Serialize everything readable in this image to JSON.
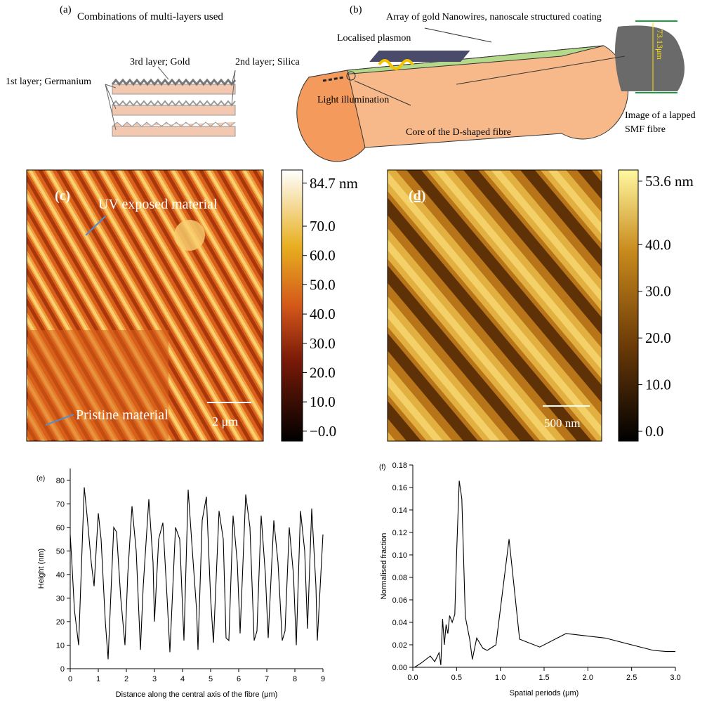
{
  "panel_a": {
    "label": "(a)",
    "title": "Combinations of multi-layers used",
    "layer3": "3rd layer; Gold",
    "layer2": "2nd layer; Silica",
    "layer1": "1st layer; Germanium"
  },
  "panel_b": {
    "label": "(b)",
    "title": "Array of gold Nanowires, nanoscale structured coating",
    "plasmon": "Localised plasmon",
    "light": "Light illumination",
    "core": "Core of the D-shaped fibre",
    "image_caption": [
      "Image of a lapped",
      "SMF fibre"
    ],
    "diameter": "73.13μm"
  },
  "panel_c": {
    "label": "(c)",
    "uv": "UV exposed material",
    "pristine": "Pristine material",
    "scale": "2 μm",
    "colorbar": {
      "lim": [
        -3.4,
        89.2
      ],
      "ticks": [
        {
          "value": 84.7,
          "label": "84.7 nm"
        },
        {
          "value": 70,
          "label": "70.0"
        },
        {
          "value": 60,
          "label": "60.0"
        },
        {
          "value": 50,
          "label": "50.0"
        },
        {
          "value": 40,
          "label": "40.0"
        },
        {
          "value": 30,
          "label": "30.0"
        },
        {
          "value": 20,
          "label": "20.0"
        },
        {
          "value": 10,
          "label": "10.0"
        },
        {
          "value": 0,
          "label": "−0.0"
        }
      ]
    }
  },
  "panel_d": {
    "label": "(d)",
    "scale": "500 nm",
    "colorbar": {
      "lim": [
        -2.1,
        56
      ],
      "ticks": [
        {
          "value": 53.6,
          "label": "53.6 nm"
        },
        {
          "value": 40,
          "label": "40.0"
        },
        {
          "value": 30,
          "label": "30.0"
        },
        {
          "value": 20,
          "label": "20.0"
        },
        {
          "value": 10,
          "label": "10.0"
        },
        {
          "value": 0,
          "label": "0.0"
        }
      ]
    }
  },
  "chart_data": [
    {
      "type": "line",
      "title": "(e)",
      "xlabel": "Distance along the central axis of the fibre (μm)",
      "ylabel": "Height (nm)",
      "color": "#000000",
      "xlim": [
        0,
        9
      ],
      "xticks": [
        0,
        1,
        2,
        3,
        4,
        5,
        6,
        7,
        8,
        9
      ],
      "ylim": [
        0,
        85
      ],
      "yticks": [
        0,
        10,
        20,
        30,
        40,
        50,
        60,
        70,
        80
      ],
      "x": [
        0,
        0.05,
        0.15,
        0.3,
        0.5,
        0.6,
        0.75,
        0.85,
        1.0,
        1.1,
        1.25,
        1.35,
        1.55,
        1.65,
        1.8,
        1.95,
        2.05,
        2.2,
        2.35,
        2.5,
        2.6,
        2.8,
        2.95,
        3.0,
        3.15,
        3.3,
        3.45,
        3.55,
        3.75,
        3.9,
        4.05,
        4.2,
        4.35,
        4.5,
        4.55,
        4.7,
        4.85,
        5.0,
        5.1,
        5.3,
        5.45,
        5.55,
        5.65,
        5.8,
        5.95,
        6.05,
        6.25,
        6.4,
        6.55,
        6.65,
        6.8,
        6.95,
        7.05,
        7.25,
        7.4,
        7.55,
        7.65,
        7.8,
        7.95,
        8.05,
        8.2,
        8.35,
        8.45,
        8.6,
        8.75,
        8.8,
        9.0
      ],
      "values": [
        57,
        47,
        25,
        10,
        77,
        65,
        45,
        35,
        66,
        55,
        20,
        4,
        60,
        58,
        30,
        10,
        40,
        69,
        50,
        8,
        35,
        72,
        45,
        20,
        55,
        62,
        30,
        7,
        60,
        55,
        12,
        76,
        50,
        25,
        8,
        63,
        73,
        30,
        11,
        67,
        55,
        13,
        12,
        65,
        45,
        15,
        74,
        60,
        12,
        16,
        65,
        40,
        13,
        63,
        45,
        12,
        16,
        60,
        40,
        10,
        67,
        50,
        17,
        68,
        35,
        12,
        57
      ]
    },
    {
      "type": "line",
      "title": "(f)",
      "xlabel": "Spatial periods (μm)",
      "ylabel": "Normalised fraction",
      "color": "#000000",
      "xlim": [
        0,
        3
      ],
      "xticks": [
        {
          "value": 0,
          "label": "0.0"
        },
        0.5,
        {
          "value": 1,
          "label": "1.0"
        },
        1.5,
        {
          "value": 2,
          "label": "2.0"
        },
        2.5,
        {
          "value": 3,
          "label": "3.0"
        }
      ],
      "ylim": [
        0,
        0.18
      ],
      "yticks": [
        {
          "value": 0,
          "label": "0.00"
        },
        0.02,
        0.04,
        0.06,
        0.08,
        {
          "value": 0.1,
          "label": "0.10"
        },
        0.12,
        0.14,
        0.16,
        0.18
      ],
      "x": [
        0.02,
        0.1,
        0.2,
        0.25,
        0.3,
        0.32,
        0.34,
        0.36,
        0.38,
        0.4,
        0.42,
        0.45,
        0.48,
        0.5,
        0.53,
        0.56,
        0.6,
        0.65,
        0.68,
        0.73,
        0.8,
        0.85,
        0.95,
        1.1,
        1.22,
        1.45,
        1.75,
        2.2,
        2.75,
        2.9,
        3.0
      ],
      "values": [
        0,
        0.004,
        0.01,
        0.005,
        0.013,
        0.002,
        0.043,
        0.02,
        0.038,
        0.03,
        0.046,
        0.04,
        0.047,
        0.1,
        0.166,
        0.15,
        0.045,
        0.025,
        0.007,
        0.026,
        0.017,
        0.015,
        0.02,
        0.114,
        0.025,
        0.018,
        0.03,
        0.026,
        0.015,
        0.014,
        0.014
      ]
    }
  ]
}
